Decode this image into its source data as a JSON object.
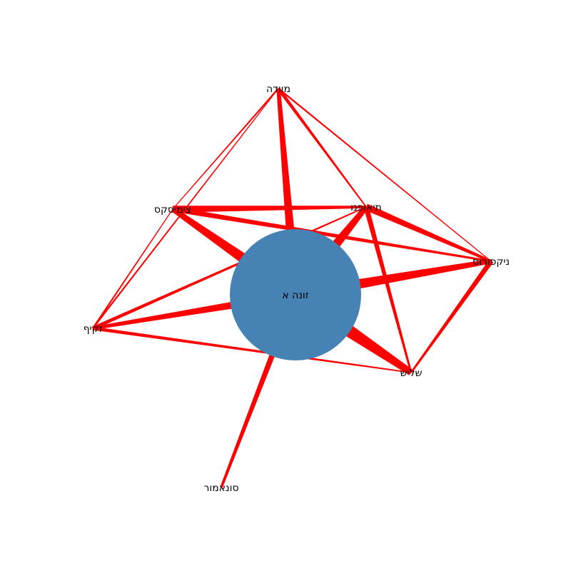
{
  "graph": {
    "edge_color": "#ff0000",
    "hub_color": "#4682b4",
    "nodes": [
      {
        "id": "hub",
        "label": "זונה א"
      },
      {
        "id": "muvad",
        "label": "מוודה"
      },
      {
        "id": "tsim",
        "label": "צימיסקס"
      },
      {
        "id": "tiaf",
        "label": "תיאופנו"
      },
      {
        "id": "nik",
        "label": "ניקפורוס"
      },
      {
        "id": "zek",
        "label": "זקיף"
      },
      {
        "id": "shal",
        "label": "שליש"
      },
      {
        "id": "son",
        "label": "סונאמור"
      }
    ],
    "edges": [
      {
        "source": "hub",
        "target": "tsim",
        "weight": 8
      },
      {
        "source": "hub",
        "target": "tiaf",
        "weight": 8
      },
      {
        "source": "hub",
        "target": "nik",
        "weight": 7
      },
      {
        "source": "hub",
        "target": "zek",
        "weight": 5
      },
      {
        "source": "hub",
        "target": "shal",
        "weight": 10
      },
      {
        "source": "hub",
        "target": "son",
        "weight": 4
      },
      {
        "source": "hub",
        "target": "muvad",
        "weight": 6
      },
      {
        "source": "tsim",
        "target": "tiaf",
        "weight": 4
      },
      {
        "source": "tsim",
        "target": "nik",
        "weight": 3
      },
      {
        "source": "tiaf",
        "target": "nik",
        "weight": 4
      },
      {
        "source": "nik",
        "target": "shal",
        "weight": 3
      },
      {
        "source": "tiaf",
        "target": "shal",
        "weight": 3
      },
      {
        "source": "zek",
        "target": "shal",
        "weight": 2
      },
      {
        "source": "zek",
        "target": "tsim",
        "weight": 1
      },
      {
        "source": "zek",
        "target": "muvad",
        "weight": 1
      },
      {
        "source": "zek",
        "target": "tiaf",
        "weight": 2
      },
      {
        "source": "muvad",
        "target": "tiaf",
        "weight": 2
      },
      {
        "source": "muvad",
        "target": "tsim",
        "weight": 1
      },
      {
        "source": "muvad",
        "target": "nik",
        "weight": 1
      },
      {
        "source": "son",
        "target": "hub",
        "weight": 1
      }
    ]
  }
}
